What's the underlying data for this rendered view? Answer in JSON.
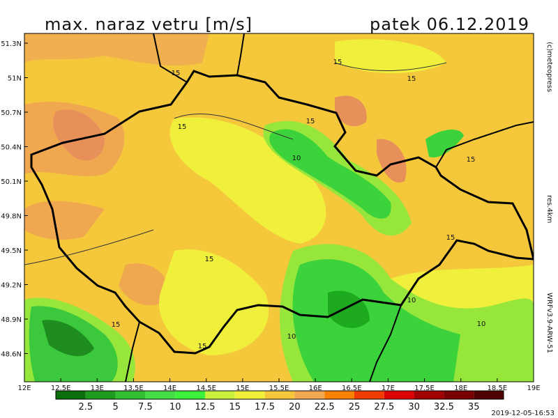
{
  "header": {
    "title": "max. naraz vetru [m/s]",
    "date": "patek 06.12.2019"
  },
  "map": {
    "lat_labels": [
      "51.3N",
      "51N",
      "50.7N",
      "50.4N",
      "50.1N",
      "49.8N",
      "49.5N",
      "49.2N",
      "48.9N",
      "48.6N"
    ],
    "lon_labels": [
      "12E",
      "12.5E",
      "13E",
      "13.5E",
      "14E",
      "14.5E",
      "15E",
      "15.5E",
      "16E",
      "16.5E",
      "17E",
      "17.5E",
      "18E",
      "18.5E",
      "19E"
    ],
    "contour_labels": [
      "15",
      "15",
      "15",
      "15",
      "15",
      "15",
      "15",
      "15",
      "15",
      "15",
      "10",
      "10",
      "10",
      "10"
    ]
  },
  "legend": {
    "labels": [
      "2.5",
      "5",
      "7.5",
      "10",
      "12.5",
      "15",
      "17.5",
      "20",
      "22.5",
      "25",
      "27.5",
      "30",
      "32.5",
      "35"
    ],
    "colors": [
      "#0a6e0a",
      "#1e9b1e",
      "#32be32",
      "#46dc46",
      "#3cf03c",
      "#c8f03c",
      "#f0f03c",
      "#f5c83c",
      "#f0a850",
      "#fa8200",
      "#f03c00",
      "#dc0000",
      "#a00000",
      "#780000",
      "#500000"
    ]
  },
  "side": {
    "credit": "(c)meteopress",
    "resolution": "res.4km",
    "model": "WRFv3.9-ARW-51"
  },
  "footer": {
    "timestamp": "2019-12-05-16:53"
  }
}
